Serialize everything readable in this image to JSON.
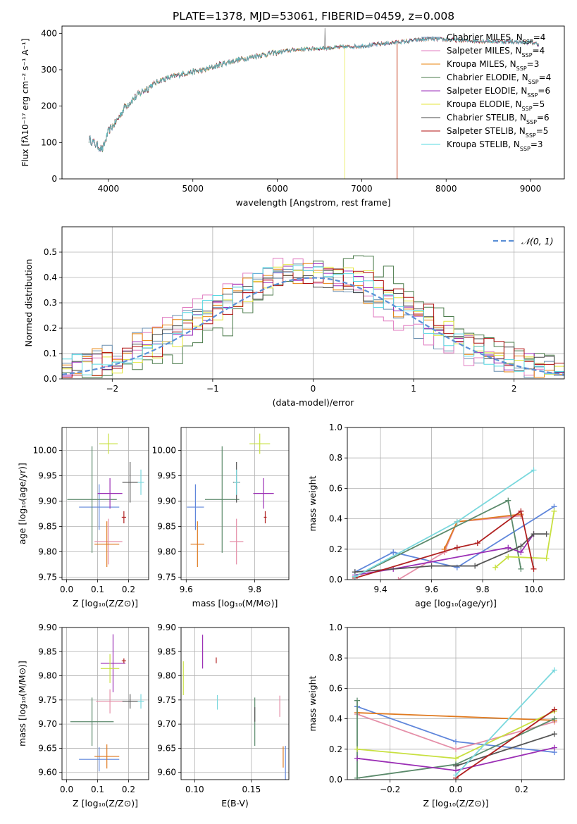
{
  "figure_title": "PLATE=1378, MJD=53061, FIBERID=0459, z=0.008",
  "colors": {
    "series": [
      "#6a8fb0",
      "#e07bc0",
      "#e8830c",
      "#4a7a4a",
      "#9a28b8",
      "#e4e63a",
      "#474747",
      "#b01010",
      "#56d8e2"
    ],
    "marker": [
      "#5f86db",
      "#e58fa8",
      "#e07a20",
      "#5b8a6b",
      "#9b2fb5",
      "#c8e040",
      "#555555",
      "#b02020",
      "#7ad8dd"
    ],
    "normal": "#5b8fd6",
    "grid": "#b0b0b0"
  },
  "series_names": [
    "Chabrier MILES",
    "Salpeter MILES",
    "Kroupa MILES",
    "Chabrier ELODIE",
    "Salpeter ELODIE",
    "Kroupa ELODIE",
    "Chabrier STELIB",
    "Salpeter STELIB",
    "Kroupa STELIB"
  ],
  "chart_data": [
    {
      "id": "spectrum",
      "type": "line",
      "xlabel": "wavelength [Angstrom, rest frame]",
      "ylabel": "Flux [fλ10⁻¹⁷ erg cm⁻² s⁻¹ A⁻¹]",
      "xlim": [
        3450,
        9400
      ],
      "ylim": [
        0,
        420
      ],
      "xticks": [
        4000,
        5000,
        6000,
        7000,
        8000,
        9000
      ],
      "yticks": [
        0,
        100,
        200,
        300,
        400
      ],
      "legend": [
        {
          "name": "Chabrier MILES",
          "nssp": "4"
        },
        {
          "name": "Salpeter MILES",
          "nssp": "4"
        },
        {
          "name": "Kroupa MILES",
          "nssp": "3"
        },
        {
          "name": "Chabrier ELODIE",
          "nssp": "4"
        },
        {
          "name": "Salpeter ELODIE",
          "nssp": "6"
        },
        {
          "name": "Kroupa ELODIE",
          "nssp": "5"
        },
        {
          "name": "Chabrier STELIB",
          "nssp": "6"
        },
        {
          "name": "Salpeter STELIB",
          "nssp": "5"
        },
        {
          "name": "Kroupa STELIB",
          "nssp": "3"
        }
      ],
      "legend_loc": "upper right",
      "continuum": [
        [
          3770,
          110
        ],
        [
          3850,
          95
        ],
        [
          3930,
          80
        ],
        [
          4000,
          130
        ],
        [
          4100,
          160
        ],
        [
          4200,
          200
        ],
        [
          4400,
          240
        ],
        [
          4600,
          270
        ],
        [
          4900,
          290
        ],
        [
          5150,
          300
        ],
        [
          5400,
          320
        ],
        [
          5800,
          340
        ],
        [
          6200,
          355
        ],
        [
          6600,
          360
        ],
        [
          7000,
          365
        ],
        [
          7400,
          375
        ],
        [
          7800,
          385
        ],
        [
          8200,
          380
        ],
        [
          8600,
          378
        ],
        [
          9000,
          375
        ],
        [
          9100,
          370
        ]
      ],
      "range_by_series": [
        [
          3770,
          9100
        ],
        [
          3770,
          9100
        ],
        [
          3770,
          9100
        ],
        [
          3770,
          9100
        ],
        [
          3770,
          9100
        ],
        [
          3930,
          6800
        ],
        [
          3770,
          9100
        ],
        [
          3770,
          9100
        ],
        [
          3770,
          9100
        ]
      ],
      "drops": [
        {
          "series": 5,
          "x": 6800
        },
        {
          "series": 2,
          "x": 7420
        },
        {
          "series": 7,
          "x": 7420
        }
      ]
    },
    {
      "id": "residuals",
      "type": "step-histogram",
      "xlabel": "(data-model)/error",
      "ylabel": "Normed distribution",
      "xlim": [
        -2.5,
        2.5
      ],
      "ylim": [
        0,
        0.6
      ],
      "xticks": [
        -2,
        -1,
        0,
        1,
        2
      ],
      "yticks": [
        0.0,
        0.1,
        0.2,
        0.3,
        0.4,
        0.5
      ],
      "legend": [
        {
          "name": "𝒩(0, 1)"
        }
      ],
      "legend_loc": "upper right",
      "bin_width": 0.1,
      "shifts": [
        -0.2,
        -0.25,
        -0.15,
        0.35,
        -0.05,
        0.05,
        0.0,
        0.1,
        -0.1
      ],
      "spreads": [
        1.0,
        0.95,
        1.02,
        0.92,
        1.0,
        0.95,
        1.05,
        1.0,
        1.0
      ]
    },
    {
      "id": "age-vs-Z",
      "type": "errorbar",
      "xlabel": "Z [log₁₀(Z/Z⊙)]",
      "ylabel": "age  [log₁₀(age/yr)]",
      "xlim": [
        -0.015,
        0.265
      ],
      "ylim": [
        9.745,
        10.045
      ],
      "xticks": [
        0.0,
        0.1,
        0.2
      ],
      "yticks": [
        9.75,
        9.8,
        9.85,
        9.9,
        9.95,
        10.0
      ],
      "points": [
        {
          "x": 0.105,
          "y": 9.888,
          "xerr": 0.065,
          "yerr": 0.045
        },
        {
          "x": 0.135,
          "y": 9.82,
          "xerr": 0.045,
          "yerr": 0.045
        },
        {
          "x": 0.13,
          "y": 9.815,
          "xerr": 0.04,
          "yerr": 0.045
        },
        {
          "x": 0.082,
          "y": 9.903,
          "xerr": 0.08,
          "yerr": 0.105
        },
        {
          "x": 0.14,
          "y": 9.915,
          "xerr": 0.04,
          "yerr": 0.03
        },
        {
          "x": 0.135,
          "y": 10.013,
          "xerr": 0.03,
          "yerr": 0.02
        },
        {
          "x": 0.205,
          "y": 9.937,
          "xerr": 0.025,
          "yerr": 0.04
        },
        {
          "x": 0.185,
          "y": 9.868,
          "xerr": 0.007,
          "yerr": 0.012
        },
        {
          "x": 0.24,
          "y": 9.937,
          "xerr": 0.01,
          "yerr": 0.025
        }
      ]
    },
    {
      "id": "age-vs-mass",
      "type": "errorbar",
      "xlabel": "mass [log₁₀(M/M⊙)]",
      "ylabel": "",
      "xlim": [
        9.585,
        9.9
      ],
      "ylim": [
        9.745,
        10.045
      ],
      "xticks": [
        9.6,
        9.8
      ],
      "yticks": [
        9.75,
        9.8,
        9.85,
        9.9,
        9.95,
        10.0
      ],
      "points": [
        {
          "x": 9.627,
          "y": 9.888,
          "xerr": 0.025,
          "yerr": 0.045
        },
        {
          "x": 9.747,
          "y": 9.82,
          "xerr": 0.02,
          "yerr": 0.045
        },
        {
          "x": 9.633,
          "y": 9.815,
          "xerr": 0.02,
          "yerr": 0.045
        },
        {
          "x": 9.705,
          "y": 9.903,
          "xerr": 0.05,
          "yerr": 0.105
        },
        {
          "x": 9.826,
          "y": 9.915,
          "xerr": 0.03,
          "yerr": 0.03
        },
        {
          "x": 9.815,
          "y": 10.013,
          "xerr": 0.03,
          "yerr": 0.02
        },
        {
          "x": 9.747,
          "y": 9.937,
          "xerr": 0.01,
          "yerr": 0.04
        },
        {
          "x": 9.831,
          "y": 9.868,
          "xerr": 0.004,
          "yerr": 0.012
        },
        {
          "x": 9.747,
          "y": 9.937,
          "xerr": 0.008,
          "yerr": 0.025
        }
      ]
    },
    {
      "id": "weight-vs-age",
      "type": "line",
      "xlabel": "age  [log₁₀(age/yr)]",
      "ylabel": "mass weight",
      "xlim": [
        9.27,
        10.12
      ],
      "ylim": [
        0,
        1
      ],
      "xticks": [
        9.4,
        9.6,
        9.8,
        10.0
      ],
      "yticks": [
        0.0,
        0.2,
        0.4,
        0.6,
        0.8,
        1.0
      ],
      "lines": [
        [
          [
            9.3,
            0.05
          ],
          [
            9.45,
            0.18
          ],
          [
            9.7,
            0.08
          ],
          [
            10.08,
            0.48
          ]
        ],
        [
          [
            9.47,
            0.0
          ],
          [
            9.65,
            0.18
          ],
          [
            9.7,
            0.38
          ],
          [
            9.95,
            0.42
          ]
        ],
        [
          [
            9.65,
            0.2
          ],
          [
            9.7,
            0.38
          ],
          [
            9.95,
            0.43
          ]
        ],
        [
          [
            9.3,
            0.02
          ],
          [
            9.9,
            0.52
          ],
          [
            9.95,
            0.07
          ]
        ],
        [
          [
            9.3,
            0.03
          ],
          [
            9.45,
            0.07
          ],
          [
            9.9,
            0.21
          ],
          [
            9.95,
            0.18
          ],
          [
            10.0,
            0.3
          ]
        ],
        [
          [
            9.85,
            0.08
          ],
          [
            9.9,
            0.15
          ],
          [
            10.05,
            0.14
          ],
          [
            10.08,
            0.45
          ]
        ],
        [
          [
            9.3,
            0.05
          ],
          [
            9.6,
            0.09
          ],
          [
            9.77,
            0.09
          ],
          [
            9.95,
            0.22
          ],
          [
            10.0,
            0.3
          ],
          [
            10.05,
            0.3
          ]
        ],
        [
          [
            9.3,
            0.01
          ],
          [
            9.7,
            0.21
          ],
          [
            9.78,
            0.24
          ],
          [
            9.95,
            0.45
          ],
          [
            10.0,
            0.07
          ]
        ],
        [
          [
            9.3,
            0.02
          ],
          [
            9.7,
            0.38
          ],
          [
            10.0,
            0.72
          ]
        ]
      ]
    },
    {
      "id": "mass-vs-Z",
      "type": "errorbar",
      "xlabel": "Z [log₁₀(Z/Z⊙)]",
      "ylabel": "mass [log₁₀(M/M⊙)]",
      "xlim": [
        -0.015,
        0.265
      ],
      "ylim": [
        9.585,
        9.9
      ],
      "xticks": [
        0.0,
        0.1,
        0.2
      ],
      "yticks": [
        9.6,
        9.65,
        9.7,
        9.75,
        9.8,
        9.85,
        9.9
      ],
      "points": [
        {
          "x": 0.105,
          "y": 9.627,
          "xerr": 0.065,
          "yerr": 0.025
        },
        {
          "x": 0.14,
          "y": 9.747,
          "xerr": 0.045,
          "yerr": 0.025
        },
        {
          "x": 0.13,
          "y": 9.633,
          "xerr": 0.04,
          "yerr": 0.025
        },
        {
          "x": 0.082,
          "y": 9.705,
          "xerr": 0.07,
          "yerr": 0.05
        },
        {
          "x": 0.15,
          "y": 9.826,
          "xerr": 0.04,
          "yerr": 0.06
        },
        {
          "x": 0.14,
          "y": 9.815,
          "xerr": 0.03,
          "yerr": 0.03
        },
        {
          "x": 0.205,
          "y": 9.747,
          "xerr": 0.025,
          "yerr": 0.015
        },
        {
          "x": 0.185,
          "y": 9.831,
          "xerr": 0.007,
          "yerr": 0.005
        },
        {
          "x": 0.24,
          "y": 9.747,
          "xerr": 0.01,
          "yerr": 0.015
        }
      ]
    },
    {
      "id": "mass-vs-EBV",
      "type": "errorbar",
      "xlabel": "E(B-V)",
      "ylabel": "",
      "xlim": [
        0.088,
        0.183
      ],
      "ylim": [
        9.585,
        9.9
      ],
      "xticks": [
        0.1,
        0.15
      ],
      "yticks": [
        9.6,
        9.65,
        9.7,
        9.75,
        9.8,
        9.85,
        9.9
      ],
      "points": [
        {
          "x": 0.18,
          "y": 9.62,
          "xerr": 0.0,
          "yerr": 0.035
        },
        {
          "x": 0.175,
          "y": 9.737,
          "xerr": 0.0,
          "yerr": 0.022
        },
        {
          "x": 0.178,
          "y": 9.632,
          "xerr": 0.0,
          "yerr": 0.022
        },
        {
          "x": 0.153,
          "y": 9.705,
          "xerr": 0.0,
          "yerr": 0.05
        },
        {
          "x": 0.107,
          "y": 9.85,
          "xerr": 0.0,
          "yerr": 0.035
        },
        {
          "x": 0.09,
          "y": 9.795,
          "xerr": 0.0,
          "yerr": 0.035
        },
        {
          "x": 0.153,
          "y": 9.72,
          "xerr": 0.0,
          "yerr": 0.015
        },
        {
          "x": 0.119,
          "y": 9.832,
          "xerr": 0.0,
          "yerr": 0.006
        },
        {
          "x": 0.12,
          "y": 9.745,
          "xerr": 0.0,
          "yerr": 0.015
        }
      ]
    },
    {
      "id": "weight-vs-Z",
      "type": "line",
      "xlabel": "Z [log₁₀(Z/Z⊙)]",
      "ylabel": "mass weight",
      "xlim": [
        -0.33,
        0.33
      ],
      "ylim": [
        0,
        1
      ],
      "xticks": [
        -0.2,
        0.0,
        0.2
      ],
      "yticks": [
        0.0,
        0.2,
        0.4,
        0.6,
        0.8,
        1.0
      ],
      "lines": [
        [
          [
            -0.3,
            0.48
          ],
          [
            0.0,
            0.25
          ],
          [
            0.3,
            0.18
          ]
        ],
        [
          [
            -0.3,
            0.43
          ],
          [
            0.0,
            0.2
          ],
          [
            0.3,
            0.38
          ]
        ],
        [
          [
            -0.3,
            0.44
          ],
          [
            0.3,
            0.39
          ]
        ],
        [
          [
            -0.3,
            0.52
          ],
          [
            -0.3,
            0.01
          ],
          [
            0.0,
            0.1
          ],
          [
            0.3,
            0.4
          ]
        ],
        [
          [
            -0.3,
            0.14
          ],
          [
            0.0,
            0.06
          ],
          [
            0.3,
            0.21
          ]
        ],
        [
          [
            -0.3,
            0.2
          ],
          [
            0.0,
            0.14
          ],
          [
            0.3,
            0.45
          ]
        ],
        [
          [
            0.0,
            0.09
          ],
          [
            0.3,
            0.3
          ]
        ],
        [
          [
            0.0,
            0.01
          ],
          [
            0.3,
            0.46
          ]
        ],
        [
          [
            0.0,
            0.03
          ],
          [
            0.3,
            0.72
          ]
        ]
      ]
    }
  ]
}
